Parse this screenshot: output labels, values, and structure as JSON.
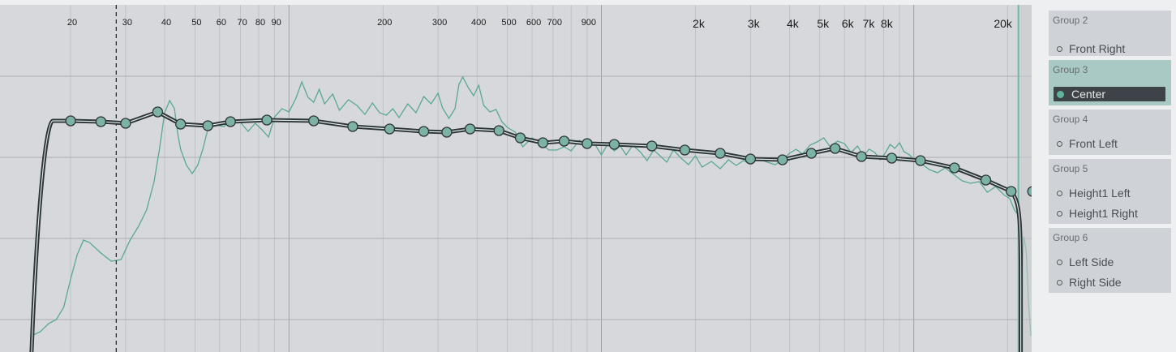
{
  "freq_axis": {
    "labels_small": [
      {
        "text": "20",
        "freq": 20
      },
      {
        "text": "30",
        "freq": 30
      },
      {
        "text": "40",
        "freq": 40
      },
      {
        "text": "50",
        "freq": 50
      },
      {
        "text": "60",
        "freq": 60
      },
      {
        "text": "70",
        "freq": 70
      },
      {
        "text": "80",
        "freq": 80
      },
      {
        "text": "90",
        "freq": 90
      },
      {
        "text": "200",
        "freq": 200
      },
      {
        "text": "300",
        "freq": 300
      },
      {
        "text": "400",
        "freq": 400
      },
      {
        "text": "500",
        "freq": 500
      },
      {
        "text": "600",
        "freq": 600
      },
      {
        "text": "700",
        "freq": 700
      },
      {
        "text": "900",
        "freq": 900
      }
    ],
    "labels_large": [
      {
        "text": "2k",
        "freq": 2000
      },
      {
        "text": "3k",
        "freq": 3000
      },
      {
        "text": "4k",
        "freq": 4000
      },
      {
        "text": "5k",
        "freq": 5000
      },
      {
        "text": "6k",
        "freq": 6000
      },
      {
        "text": "7k",
        "freq": 7000
      },
      {
        "text": "8k",
        "freq": 8000
      },
      {
        "text": "20k",
        "freq": 20000
      }
    ],
    "range_hz": [
      15,
      25000
    ],
    "scale": "log"
  },
  "markers": {
    "low_cutoff_hz": 28,
    "high_cursor_hz": 21500
  },
  "colors": {
    "background": "#d6d8dc",
    "grid": "#b7babe",
    "measurement": "#5aa893",
    "curve": "#2d3337",
    "point_fill": "#7db3a6",
    "high_cursor": "#77b8aa"
  },
  "chart_data": {
    "type": "line",
    "x_scale": "log",
    "x_unit_hz": true,
    "y_range": [
      -22,
      10
    ],
    "target_curve_points": [
      {
        "x": 20,
        "y": 4.5
      },
      {
        "x": 25,
        "y": 4.4
      },
      {
        "x": 30,
        "y": 4.2
      },
      {
        "x": 38,
        "y": 5.6
      },
      {
        "x": 45,
        "y": 4.1
      },
      {
        "x": 55,
        "y": 3.9
      },
      {
        "x": 65,
        "y": 4.4
      },
      {
        "x": 85,
        "y": 4.6
      },
      {
        "x": 120,
        "y": 4.5
      },
      {
        "x": 160,
        "y": 3.8
      },
      {
        "x": 210,
        "y": 3.5
      },
      {
        "x": 270,
        "y": 3.2
      },
      {
        "x": 320,
        "y": 3.1
      },
      {
        "x": 380,
        "y": 3.5
      },
      {
        "x": 470,
        "y": 3.3
      },
      {
        "x": 550,
        "y": 2.4
      },
      {
        "x": 650,
        "y": 1.8
      },
      {
        "x": 760,
        "y": 2.0
      },
      {
        "x": 900,
        "y": 1.7
      },
      {
        "x": 1100,
        "y": 1.6
      },
      {
        "x": 1450,
        "y": 1.4
      },
      {
        "x": 1850,
        "y": 0.9
      },
      {
        "x": 2400,
        "y": 0.5
      },
      {
        "x": 3000,
        "y": -0.2
      },
      {
        "x": 3800,
        "y": -0.3
      },
      {
        "x": 4700,
        "y": 0.5
      },
      {
        "x": 5600,
        "y": 1.1
      },
      {
        "x": 6800,
        "y": 0.1
      },
      {
        "x": 8500,
        "y": -0.1
      },
      {
        "x": 10500,
        "y": -0.4
      },
      {
        "x": 13500,
        "y": -1.3
      },
      {
        "x": 17000,
        "y": -2.8
      },
      {
        "x": 20500,
        "y": -4.2
      },
      {
        "x": 24000,
        "y": -4.2
      }
    ],
    "rolloff": {
      "low_start_hz": 15,
      "low_top_hz": 16.5,
      "high_knee_hz": 21500,
      "high_end_hz": 22000
    },
    "measurement_trace": [
      [
        15,
        -22
      ],
      [
        16,
        -21.5
      ],
      [
        17,
        -20.5
      ],
      [
        18,
        -20
      ],
      [
        19,
        -18.5
      ],
      [
        20,
        -15
      ],
      [
        21,
        -12
      ],
      [
        22,
        -10.2
      ],
      [
        23,
        -10.5
      ],
      [
        25,
        -11.8
      ],
      [
        27,
        -12.8
      ],
      [
        29,
        -12.6
      ],
      [
        31,
        -10.2
      ],
      [
        33,
        -8.5
      ],
      [
        35,
        -6.5
      ],
      [
        37,
        -3
      ],
      [
        38.5,
        1
      ],
      [
        40,
        5.5
      ],
      [
        41.5,
        7
      ],
      [
        43,
        6
      ],
      [
        44,
        3
      ],
      [
        45,
        1
      ],
      [
        47,
        -1
      ],
      [
        49,
        -2
      ],
      [
        51,
        -1
      ],
      [
        53,
        1
      ],
      [
        55,
        3.5
      ],
      [
        58,
        4
      ],
      [
        62,
        3.8
      ],
      [
        66,
        4.8
      ],
      [
        70,
        4.3
      ],
      [
        74,
        3.2
      ],
      [
        78,
        4.2
      ],
      [
        82,
        3.4
      ],
      [
        86,
        2.5
      ],
      [
        90,
        5
      ],
      [
        95,
        6
      ],
      [
        100,
        5.6
      ],
      [
        105,
        7.2
      ],
      [
        110,
        9.3
      ],
      [
        115,
        7.4
      ],
      [
        120,
        6.8
      ],
      [
        125,
        8.4
      ],
      [
        130,
        6.6
      ],
      [
        138,
        7.8
      ],
      [
        145,
        5.8
      ],
      [
        155,
        7.1
      ],
      [
        165,
        6.4
      ],
      [
        175,
        5.3
      ],
      [
        185,
        6.7
      ],
      [
        195,
        5.5
      ],
      [
        205,
        5.2
      ],
      [
        215,
        6
      ],
      [
        225,
        4.9
      ],
      [
        240,
        6.6
      ],
      [
        255,
        5.5
      ],
      [
        270,
        7.5
      ],
      [
        285,
        6.6
      ],
      [
        300,
        7.9
      ],
      [
        310,
        6.1
      ],
      [
        325,
        4.8
      ],
      [
        340,
        6
      ],
      [
        350,
        9
      ],
      [
        360,
        9.9
      ],
      [
        375,
        8.6
      ],
      [
        390,
        7.6
      ],
      [
        405,
        8.9
      ],
      [
        420,
        6.4
      ],
      [
        440,
        5.6
      ],
      [
        460,
        5.9
      ],
      [
        480,
        4.4
      ],
      [
        500,
        3.7
      ],
      [
        530,
        3.1
      ],
      [
        560,
        1.3
      ],
      [
        600,
        2.4
      ],
      [
        640,
        1.7
      ],
      [
        680,
        0.9
      ],
      [
        720,
        0.9
      ],
      [
        760,
        1.3
      ],
      [
        800,
        0.8
      ],
      [
        850,
        2.1
      ],
      [
        900,
        1.2
      ],
      [
        950,
        1.7
      ],
      [
        1000,
        0.3
      ],
      [
        1050,
        1.7
      ],
      [
        1100,
        0.8
      ],
      [
        1150,
        1.4
      ],
      [
        1200,
        0.3
      ],
      [
        1260,
        1.5
      ],
      [
        1330,
        0.7
      ],
      [
        1400,
        -0.4
      ],
      [
        1470,
        0.9
      ],
      [
        1540,
        0.2
      ],
      [
        1620,
        -0.6
      ],
      [
        1700,
        0.9
      ],
      [
        1800,
        -0.1
      ],
      [
        1900,
        -0.9
      ],
      [
        2000,
        0.2
      ],
      [
        2100,
        -1.2
      ],
      [
        2250,
        -0.5
      ],
      [
        2400,
        -1.4
      ],
      [
        2550,
        -0.3
      ],
      [
        2700,
        -1.0
      ],
      [
        2850,
        -0.4
      ],
      [
        3000,
        -0.8
      ],
      [
        3200,
        -0.2
      ],
      [
        3400,
        -0.6
      ],
      [
        3600,
        -0.9
      ],
      [
        3800,
        -0.3
      ],
      [
        4000,
        0.5
      ],
      [
        4200,
        1
      ],
      [
        4400,
        0.4
      ],
      [
        4650,
        1.5
      ],
      [
        4900,
        1.9
      ],
      [
        5150,
        2.4
      ],
      [
        5400,
        1.3
      ],
      [
        5700,
        2
      ],
      [
        6000,
        1.7
      ],
      [
        6300,
        0.6
      ],
      [
        6600,
        1.4
      ],
      [
        6900,
        0.2
      ],
      [
        7200,
        1
      ],
      [
        7500,
        0.6
      ],
      [
        7800,
        -0.3
      ],
      [
        8100,
        0.5
      ],
      [
        8400,
        1.6
      ],
      [
        8700,
        1.1
      ],
      [
        9000,
        1.8
      ],
      [
        9300,
        0.7
      ],
      [
        9700,
        0.3
      ],
      [
        10100,
        -0.5
      ],
      [
        10600,
        -0.8
      ],
      [
        11200,
        -1.5
      ],
      [
        11900,
        -1.9
      ],
      [
        12600,
        -1.3
      ],
      [
        13400,
        -2.1
      ],
      [
        14300,
        -2.9
      ],
      [
        15200,
        -3.2
      ],
      [
        16200,
        -3.0
      ],
      [
        17200,
        -4.3
      ],
      [
        18300,
        -3.6
      ],
      [
        19400,
        -4.6
      ],
      [
        20300,
        -5.1
      ],
      [
        21000,
        -6.5
      ],
      [
        21500,
        -7
      ]
    ],
    "measurement_tail": [
      [
        21800,
        -22
      ],
      [
        22100,
        -16
      ],
      [
        22500,
        -9.8
      ],
      [
        22900,
        -11.5
      ],
      [
        23300,
        -18
      ],
      [
        23700,
        -22
      ]
    ]
  },
  "sidebar": {
    "groups": [
      {
        "title": "Group 2",
        "channels": [
          "Front Right"
        ],
        "active_index": -1,
        "selected": false
      },
      {
        "title": "Group 3",
        "channels": [
          "Center"
        ],
        "active_index": 0,
        "selected": true
      },
      {
        "title": "Group 4",
        "channels": [
          "Front Left"
        ],
        "active_index": -1,
        "selected": false
      },
      {
        "title": "Group 5",
        "channels": [
          "Height1 Left",
          "Height1 Right"
        ],
        "active_index": -1,
        "selected": false
      },
      {
        "title": "Group 6",
        "channels": [
          "Left Side",
          "Right Side"
        ],
        "active_index": -1,
        "selected": false
      }
    ]
  }
}
